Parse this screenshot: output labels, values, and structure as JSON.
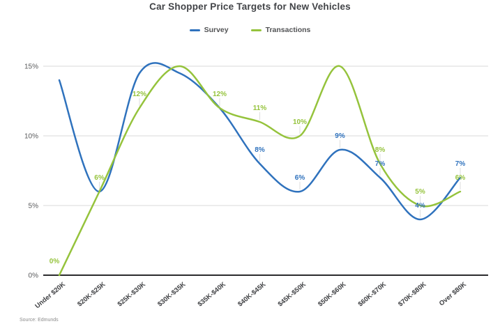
{
  "title": "Car Shopper Price Targets for New Vehicles",
  "source_note": "Source: Edmunds",
  "legend": {
    "items": [
      {
        "name": "Survey",
        "color": "#2f72bd"
      },
      {
        "name": "Transactions",
        "color": "#95c33c"
      }
    ]
  },
  "colors": {
    "grid": "#d9d9d9",
    "axis": "#2b2b2d",
    "y_tick_text": "#58595b",
    "x_tick_text": "#3f4043",
    "leader": "#dedede",
    "background": "#ffffff"
  },
  "chart_data": {
    "type": "line",
    "smooth": true,
    "grid": "horizontal",
    "legend_position": "top",
    "title": "Car Shopper Price Targets for New Vehicles",
    "categories": [
      "Under $20K",
      "$20K-$25K",
      "$25K-$30K",
      "$30K-$35K",
      "$35K-$40K",
      "$40K-$45K",
      "$45K-$50K",
      "$50K-$60K",
      "$60K-$70K",
      "$70K-$80K",
      "Over $80K"
    ],
    "ylim": [
      0,
      15
    ],
    "yticks": [
      {
        "value": 0,
        "label": "0%"
      },
      {
        "value": 5,
        "label": "5%"
      },
      {
        "value": 10,
        "label": "10%"
      },
      {
        "value": 15,
        "label": "15%"
      }
    ],
    "series": [
      {
        "name": "Survey",
        "color": "#2f72bd",
        "values": [
          14,
          6,
          14.5,
          14.5,
          12,
          8,
          6,
          9,
          7,
          4,
          7
        ],
        "point_labels": [
          null,
          null,
          null,
          null,
          null,
          "8%",
          "6%",
          "9%",
          "7%",
          "4%",
          "7%"
        ]
      },
      {
        "name": "Transactions",
        "color": "#95c33c",
        "values": [
          0,
          6,
          12,
          15,
          12,
          11,
          10,
          15,
          8,
          5,
          6
        ],
        "point_labels": [
          "0%",
          "6%",
          "12%",
          null,
          "12%",
          "11%",
          "10%",
          null,
          "8%",
          "5%",
          "6%"
        ]
      }
    ],
    "label_overrides": {
      "Transactions.0": {
        "dx": -7,
        "leader": false
      }
    }
  }
}
